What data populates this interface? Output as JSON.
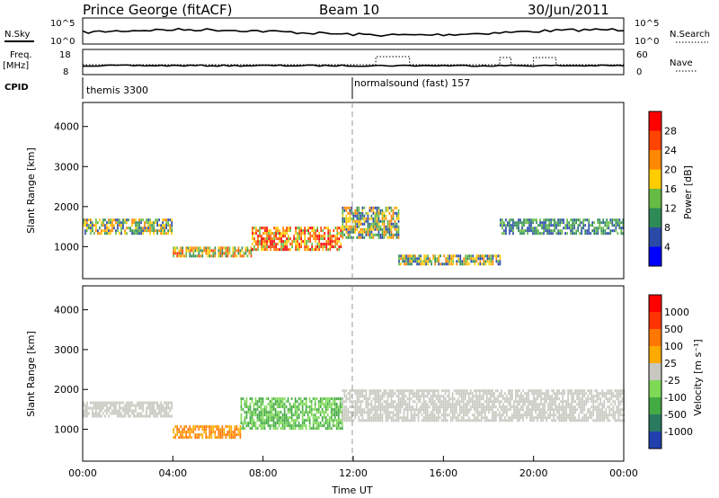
{
  "header": {
    "station": "Prince George (fitACF)",
    "beam": "Beam 10",
    "date": "30/Jun/2011"
  },
  "top_panels": {
    "nsky_label": "N.Sky",
    "nsky_ticks": [
      "10^5",
      "10^0"
    ],
    "nsearch_label": "N.Search",
    "nsearch_ticks": [
      "10^5",
      "10^0"
    ],
    "freq_label_1": "Freq.",
    "freq_label_2": "[MHz]",
    "freq_ticks": [
      "18",
      "8"
    ],
    "nave_label": "Nave",
    "nave_ticks": [
      "60",
      "0"
    ],
    "cpid_label": "CPID",
    "cpid_segments": [
      {
        "label": "themis 3300",
        "start": "00:00"
      },
      {
        "label": "normalsound (fast) 157",
        "start": "12:00"
      }
    ]
  },
  "chart_data": [
    {
      "type": "heatmap",
      "name": "power",
      "ylabel": "Slant Range [km]",
      "yticks": [
        "4000",
        "3000",
        "2000",
        "1000"
      ],
      "ylim": [
        200,
        4600
      ],
      "xlim": [
        "00:00",
        "24:00"
      ],
      "colorbar_label": "Power [dB]",
      "colorbar_ticks": [
        "28",
        "24",
        "20",
        "16",
        "12",
        "8",
        "4"
      ],
      "colorbar_colors": [
        "#0000ff",
        "#2a4aa8",
        "#2e8b57",
        "#66bb44",
        "#ffcc00",
        "#ff8800",
        "#ff4400",
        "#ff0000"
      ],
      "bands": [
        {
          "start": 0.0,
          "end": 4.0,
          "r0": 1350,
          "r1": 1700,
          "level": "medium"
        },
        {
          "start": 4.0,
          "end": 7.5,
          "r0": 750,
          "r1": 1000,
          "level": "high"
        },
        {
          "start": 7.5,
          "end": 11.5,
          "r0": 900,
          "r1": 1500,
          "level": "very-high"
        },
        {
          "start": 11.5,
          "end": 14.0,
          "r0": 1200,
          "r1": 2000,
          "level": "medium"
        },
        {
          "start": 14.0,
          "end": 18.5,
          "r0": 550,
          "r1": 800,
          "level": "medium"
        },
        {
          "start": 18.5,
          "end": 24.0,
          "r0": 1300,
          "r1": 1700,
          "level": "low"
        }
      ]
    },
    {
      "type": "heatmap",
      "name": "velocity",
      "ylabel": "Slant Range [km]",
      "yticks": [
        "4000",
        "3000",
        "2000",
        "1000"
      ],
      "ylim": [
        200,
        4600
      ],
      "xticks": [
        "00:00",
        "04:00",
        "08:00",
        "12:00",
        "16:00",
        "20:00",
        "00:00"
      ],
      "xlabel": "Time UT",
      "colorbar_label": "Velocity [m s⁻¹]",
      "colorbar_ticks": [
        "1000",
        "500",
        "100",
        "25",
        "-25",
        "-100",
        "-500",
        "-1000"
      ],
      "colorbar_colors": [
        "#2040b0",
        "#2a7a60",
        "#44aa44",
        "#7ed957",
        "#c8c8c0",
        "#ffaa00",
        "#ff7700",
        "#ff3300",
        "#ff0000"
      ],
      "bands": [
        {
          "start": 0.0,
          "end": 4.0,
          "r0": 1300,
          "r1": 1700,
          "v": "ground"
        },
        {
          "start": 4.0,
          "end": 7.0,
          "r0": 800,
          "r1": 1100,
          "v": "away"
        },
        {
          "start": 7.0,
          "end": 11.5,
          "r0": 1000,
          "r1": 1800,
          "v": "toward"
        },
        {
          "start": 11.5,
          "end": 24.0,
          "r0": 1200,
          "r1": 2000,
          "v": "ground"
        }
      ]
    }
  ]
}
